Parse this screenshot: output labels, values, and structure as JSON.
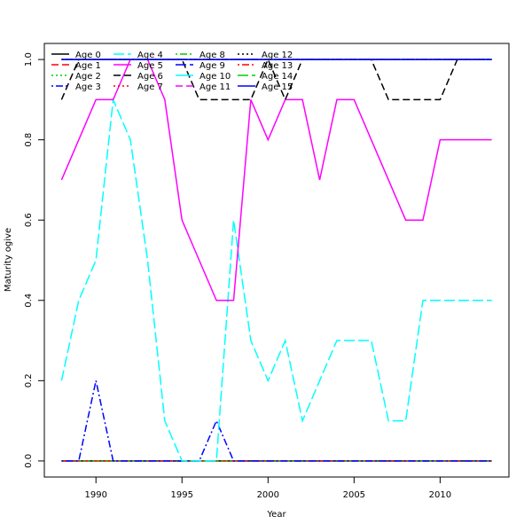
{
  "chart_data": {
    "type": "line",
    "title": "",
    "xlabel": "Year",
    "ylabel": "Maturity ogive",
    "xlim": [
      1987.0,
      2014.0
    ],
    "ylim": [
      -0.04,
      1.04
    ],
    "x_ticks": [
      1990,
      1995,
      2000,
      2005,
      2010
    ],
    "y_ticks": [
      0.0,
      0.2,
      0.4,
      0.6,
      0.8,
      1.0
    ],
    "x_tick_labels": [
      "1990",
      "1995",
      "2000",
      "2005",
      "2010"
    ],
    "y_tick_labels": [
      "0.0",
      "0.2",
      "0.4",
      "0.6",
      "0.8",
      "1.0"
    ],
    "grid": false,
    "legend_position": "top-left",
    "x": [
      1988,
      1989,
      1990,
      1991,
      1992,
      1993,
      1994,
      1995,
      1996,
      1997,
      1998,
      1999,
      2000,
      2001,
      2002,
      2003,
      2004,
      2005,
      2006,
      2007,
      2008,
      2009,
      2010,
      2011,
      2012,
      2013
    ],
    "series": [
      {
        "name": "Age 0",
        "color": "#000000",
        "dash": "solid",
        "values": [
          0,
          0,
          0,
          0,
          0,
          0,
          0,
          0,
          0,
          0,
          0,
          0,
          0,
          0,
          0,
          0,
          0,
          0,
          0,
          0,
          0,
          0,
          0,
          0,
          0,
          0
        ]
      },
      {
        "name": "Age 1",
        "color": "#ff0000",
        "dash": "dashed",
        "values": [
          0,
          0,
          0,
          0,
          0,
          0,
          0,
          0,
          0,
          0,
          0,
          0,
          0,
          0,
          0,
          0,
          0,
          0,
          0,
          0,
          0,
          0,
          0,
          0,
          0,
          0
        ]
      },
      {
        "name": "Age 2",
        "color": "#00cd00",
        "dash": "dotted",
        "values": [
          0,
          0,
          0,
          0,
          0,
          0,
          0,
          0,
          0,
          0,
          0,
          0,
          0,
          0,
          0,
          0,
          0,
          0,
          0,
          0,
          0,
          0,
          0,
          0,
          0,
          0
        ]
      },
      {
        "name": "Age 3",
        "color": "#0000ff",
        "dash": "dotdash",
        "values": [
          0,
          0,
          0.2,
          0,
          0,
          0,
          0,
          0,
          0,
          0.1,
          0,
          0,
          0,
          0,
          0,
          0,
          0,
          0,
          0,
          0,
          0,
          0,
          0,
          0,
          0,
          0
        ]
      },
      {
        "name": "Age 4",
        "color": "#00ffff",
        "dash": "longdash",
        "values": [
          0.2,
          0.4,
          0.5,
          0.9,
          0.8,
          0.5,
          0.1,
          0,
          0,
          0,
          0.6,
          0.3,
          0.2,
          0.3,
          0.1,
          0.2,
          0.3,
          0.3,
          0.3,
          0.1,
          0.1,
          0.4,
          0.4,
          0.4,
          0.4,
          0.4
        ]
      },
      {
        "name": "Age 5",
        "color": "#ff00ff",
        "dash": "solid",
        "values": [
          0.7,
          0.8,
          0.9,
          0.9,
          1.0,
          1.0,
          0.9,
          0.6,
          0.5,
          0.4,
          0.4,
          0.9,
          0.8,
          0.9,
          0.9,
          0.7,
          0.9,
          0.9,
          0.8,
          0.7,
          0.6,
          0.6,
          0.8,
          0.8,
          0.8,
          0.8
        ]
      },
      {
        "name": "Age 6",
        "color": "#000000",
        "dash": "dashed",
        "values": [
          0.9,
          1,
          1,
          1,
          1,
          1,
          1,
          1,
          0.9,
          0.9,
          0.9,
          0.9,
          1,
          0.9,
          1,
          1,
          1,
          1,
          1,
          0.9,
          0.9,
          0.9,
          0.9,
          1,
          1,
          1
        ]
      },
      {
        "name": "Age 7",
        "color": "#ff0000",
        "dash": "dotted",
        "values": [
          1,
          1,
          1,
          1,
          1,
          1,
          1,
          1,
          1,
          1,
          1,
          1,
          1,
          1,
          1,
          1,
          1,
          1,
          1,
          1,
          1,
          1,
          1,
          1,
          1,
          1
        ]
      },
      {
        "name": "Age 8",
        "color": "#00cd00",
        "dash": "dotdash",
        "values": [
          1,
          1,
          1,
          1,
          1,
          1,
          1,
          1,
          1,
          1,
          1,
          1,
          1,
          1,
          1,
          1,
          1,
          1,
          1,
          1,
          1,
          1,
          1,
          1,
          1,
          1
        ]
      },
      {
        "name": "Age 9",
        "color": "#0000ff",
        "dash": "longdash",
        "values": [
          1,
          1,
          1,
          1,
          1,
          1,
          1,
          1,
          1,
          1,
          1,
          1,
          1,
          1,
          1,
          1,
          1,
          1,
          1,
          1,
          1,
          1,
          1,
          1,
          1,
          1
        ]
      },
      {
        "name": "Age 10",
        "color": "#00ffff",
        "dash": "solid",
        "values": [
          1,
          1,
          1,
          1,
          1,
          1,
          1,
          1,
          1,
          1,
          1,
          1,
          1,
          1,
          1,
          1,
          1,
          1,
          1,
          1,
          1,
          1,
          1,
          1,
          1,
          1
        ]
      },
      {
        "name": "Age 11",
        "color": "#ff00ff",
        "dash": "dashed",
        "values": [
          1,
          1,
          1,
          1,
          1,
          1,
          1,
          1,
          1,
          1,
          1,
          1,
          1,
          1,
          1,
          1,
          1,
          1,
          1,
          1,
          1,
          1,
          1,
          1,
          1,
          1
        ]
      },
      {
        "name": "Age 12",
        "color": "#000000",
        "dash": "dotted",
        "values": [
          1,
          1,
          1,
          1,
          1,
          1,
          1,
          1,
          1,
          1,
          1,
          1,
          1,
          1,
          1,
          1,
          1,
          1,
          1,
          1,
          1,
          1,
          1,
          1,
          1,
          1
        ]
      },
      {
        "name": "Age 13",
        "color": "#ff0000",
        "dash": "dotdash",
        "values": [
          1,
          1,
          1,
          1,
          1,
          1,
          1,
          1,
          1,
          1,
          1,
          1,
          1,
          1,
          1,
          1,
          1,
          1,
          1,
          1,
          1,
          1,
          1,
          1,
          1,
          1
        ]
      },
      {
        "name": "Age 14",
        "color": "#00cd00",
        "dash": "longdash",
        "values": [
          1,
          1,
          1,
          1,
          1,
          1,
          1,
          1,
          1,
          1,
          1,
          1,
          1,
          1,
          1,
          1,
          1,
          1,
          1,
          1,
          1,
          1,
          1,
          1,
          1,
          1
        ]
      },
      {
        "name": "Age 15",
        "color": "#0000ff",
        "dash": "solid",
        "values": [
          1,
          1,
          1,
          1,
          1,
          1,
          1,
          1,
          1,
          1,
          1,
          1,
          1,
          1,
          1,
          1,
          1,
          1,
          1,
          1,
          1,
          1,
          1,
          1,
          1,
          1
        ]
      }
    ]
  }
}
